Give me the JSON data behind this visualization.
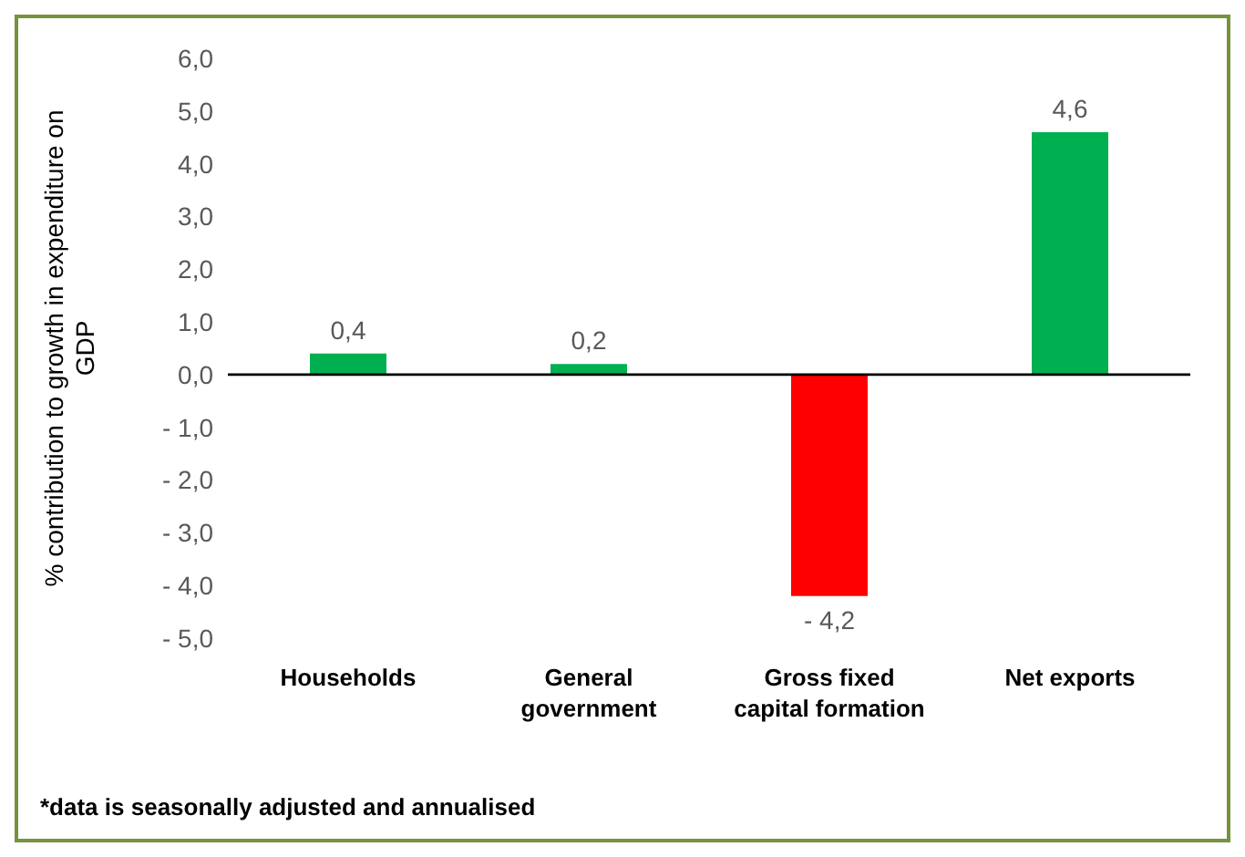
{
  "chart_data": {
    "type": "bar",
    "ylabel": "% contribution to growth in expenditure on GDP",
    "categories": [
      "Households",
      "General government",
      "Gross fixed capital formation",
      "Net exports"
    ],
    "values": [
      0.4,
      0.2,
      -4.2,
      4.6
    ],
    "colors": [
      "#00b050",
      "#00b050",
      "#ff0000",
      "#00b050"
    ],
    "value_labels": [
      "0,4",
      "0,2",
      "- 4,2",
      "4,6"
    ],
    "ylim": [
      -5,
      6
    ],
    "yticks": [
      {
        "value": -5,
        "label": "- 5,0"
      },
      {
        "value": -4,
        "label": "- 4,0"
      },
      {
        "value": -3,
        "label": "- 3,0"
      },
      {
        "value": -2,
        "label": "- 2,0"
      },
      {
        "value": -1,
        "label": "- 1,0"
      },
      {
        "value": 0,
        "label": "0,0"
      },
      {
        "value": 1,
        "label": "1,0"
      },
      {
        "value": 2,
        "label": "2,0"
      },
      {
        "value": 3,
        "label": "3,0"
      },
      {
        "value": 4,
        "label": "4,0"
      },
      {
        "value": 5,
        "label": "5,0"
      },
      {
        "value": 6,
        "label": "6,0"
      }
    ],
    "legend": false,
    "annotations": [
      "*data is seasonally adjusted and annualised"
    ]
  }
}
